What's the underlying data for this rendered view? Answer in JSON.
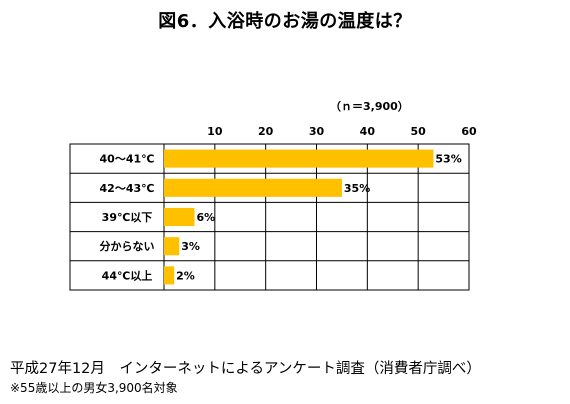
{
  "title": "図6．入浴時のお湯の温度は？",
  "sample_size": "（ｎ＝3,900）",
  "source": "平成27年12月　インターネットによるアンケート調査（消費者庁調べ）",
  "note": "※55歳以上の男女3,900名対象",
  "colors": {
    "bar": "#FFC000",
    "grid": "#000000"
  },
  "chart_data": {
    "type": "bar",
    "orientation": "horizontal",
    "categories": [
      "40～41℃",
      "42～43℃",
      "39℃以下",
      "分からない",
      "44℃以上"
    ],
    "values": [
      53,
      35,
      6,
      3,
      2
    ],
    "value_labels": [
      "53%",
      "35%",
      "6%",
      "3%",
      "2%"
    ],
    "xticks": [
      10,
      20,
      30,
      40,
      50,
      60
    ],
    "xlim": [
      0,
      60
    ],
    "grid": true,
    "title": "",
    "xlabel": "",
    "ylabel": ""
  }
}
